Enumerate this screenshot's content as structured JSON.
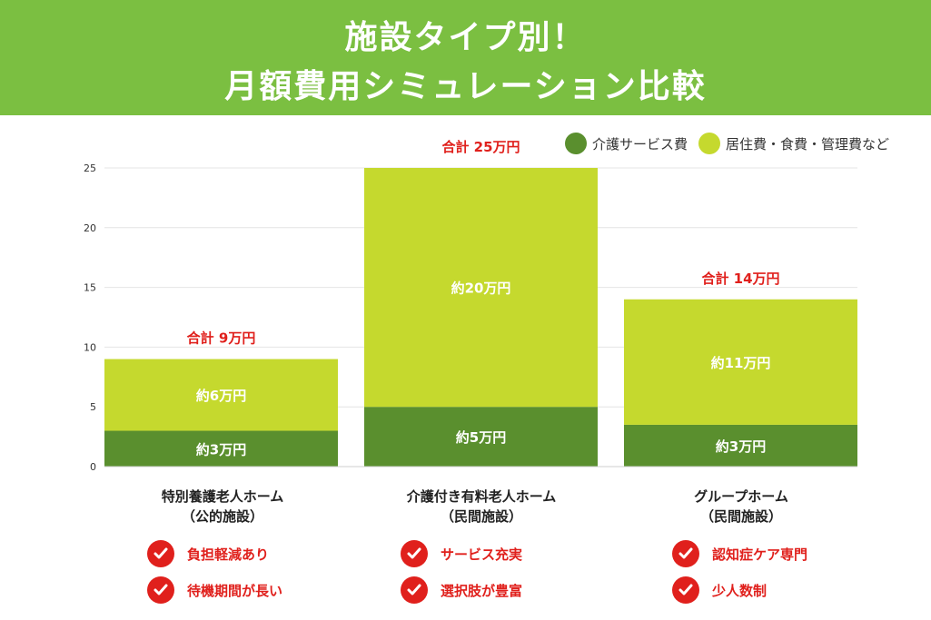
{
  "header": {
    "line1": "施設タイプ別！",
    "line2": "月額費用シミュレーション比較"
  },
  "colors": {
    "header_bg": "#7bbf41",
    "care": "#5a8f2e",
    "living": "#c5d92e",
    "total_text": "#e0201c",
    "check": "#e0201c"
  },
  "legend": [
    {
      "label": "介護サービス費",
      "color": "#5a8f2e"
    },
    {
      "label": "居住費・食費・管理費など",
      "color": "#c5d92e"
    }
  ],
  "chart_data": {
    "type": "bar",
    "stacked": true,
    "categories": [
      "特別養護老人ホーム",
      "介護付き有料老人ホーム",
      "グループホーム"
    ],
    "series": [
      {
        "name": "介護サービス費",
        "values": [
          3,
          5,
          3.5
        ],
        "labels": [
          "約3万円",
          "約5万円",
          "約3万円"
        ]
      },
      {
        "name": "居住費・食費・管理費など",
        "values": [
          6,
          20,
          10.5
        ],
        "labels": [
          "約6万円",
          "約20万円",
          "約11万円"
        ]
      }
    ],
    "totals": [
      "合計 9万円",
      "合計 25万円",
      "合計 14万円"
    ],
    "yticks": [
      "0",
      "5",
      "10",
      "15",
      "20",
      "25"
    ],
    "ylim": [
      0,
      25
    ],
    "grid": true,
    "legend_position": "top-right"
  },
  "facilities": [
    {
      "name": "特別養護老人ホーム",
      "type": "（公的施設）",
      "features": [
        "負担軽減あり",
        "待機期間が長い"
      ]
    },
    {
      "name": "介護付き有料老人ホーム",
      "type": "（民間施設）",
      "features": [
        "サービス充実",
        "選択肢が豊富"
      ]
    },
    {
      "name": "グループホーム",
      "type": "（民間施設）",
      "features": [
        "認知症ケア専門",
        "少人数制"
      ]
    }
  ]
}
